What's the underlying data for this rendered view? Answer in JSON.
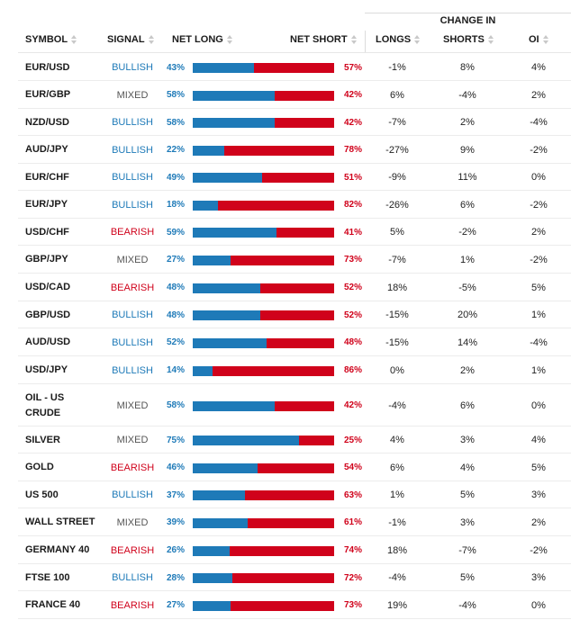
{
  "header": {
    "change_in": "CHANGE IN",
    "symbol": "SYMBOL",
    "signal": "SIGNAL",
    "net_long": "NET LONG",
    "net_short": "NET SHORT",
    "longs": "LONGS",
    "shorts": "SHORTS",
    "oi": "OI"
  },
  "colors": {
    "long": "#1e7ab8",
    "short": "#d0021b",
    "bullish": "#1e7ab8",
    "bearish": "#d0021b",
    "mixed": "#555555"
  },
  "rows": [
    {
      "symbol": "EUR/USD",
      "signal": "BULLISH",
      "net_long": "43%",
      "long_pct": 43,
      "net_short": "57%",
      "longs": "-1%",
      "shorts": "8%",
      "oi": "4%"
    },
    {
      "symbol": "EUR/GBP",
      "signal": "MIXED",
      "net_long": "58%",
      "long_pct": 58,
      "net_short": "42%",
      "longs": "6%",
      "shorts": "-4%",
      "oi": "2%"
    },
    {
      "symbol": "NZD/USD",
      "signal": "BULLISH",
      "net_long": "58%",
      "long_pct": 58,
      "net_short": "42%",
      "longs": "-7%",
      "shorts": "2%",
      "oi": "-4%"
    },
    {
      "symbol": "AUD/JPY",
      "signal": "BULLISH",
      "net_long": "22%",
      "long_pct": 22,
      "net_short": "78%",
      "longs": "-27%",
      "shorts": "9%",
      "oi": "-2%"
    },
    {
      "symbol": "EUR/CHF",
      "signal": "BULLISH",
      "net_long": "49%",
      "long_pct": 49,
      "net_short": "51%",
      "longs": "-9%",
      "shorts": "11%",
      "oi": "0%"
    },
    {
      "symbol": "EUR/JPY",
      "signal": "BULLISH",
      "net_long": "18%",
      "long_pct": 18,
      "net_short": "82%",
      "longs": "-26%",
      "shorts": "6%",
      "oi": "-2%"
    },
    {
      "symbol": "USD/CHF",
      "signal": "BEARISH",
      "net_long": "59%",
      "long_pct": 59,
      "net_short": "41%",
      "longs": "5%",
      "shorts": "-2%",
      "oi": "2%"
    },
    {
      "symbol": "GBP/JPY",
      "signal": "MIXED",
      "net_long": "27%",
      "long_pct": 27,
      "net_short": "73%",
      "longs": "-7%",
      "shorts": "1%",
      "oi": "-2%"
    },
    {
      "symbol": "USD/CAD",
      "signal": "BEARISH",
      "net_long": "48%",
      "long_pct": 48,
      "net_short": "52%",
      "longs": "18%",
      "shorts": "-5%",
      "oi": "5%"
    },
    {
      "symbol": "GBP/USD",
      "signal": "BULLISH",
      "net_long": "48%",
      "long_pct": 48,
      "net_short": "52%",
      "longs": "-15%",
      "shorts": "20%",
      "oi": "1%"
    },
    {
      "symbol": "AUD/USD",
      "signal": "BULLISH",
      "net_long": "52%",
      "long_pct": 52,
      "net_short": "48%",
      "longs": "-15%",
      "shorts": "14%",
      "oi": "-4%"
    },
    {
      "symbol": "USD/JPY",
      "signal": "BULLISH",
      "net_long": "14%",
      "long_pct": 14,
      "net_short": "86%",
      "longs": "0%",
      "shorts": "2%",
      "oi": "1%"
    },
    {
      "symbol": "OIL - US CRUDE",
      "signal": "MIXED",
      "net_long": "58%",
      "long_pct": 58,
      "net_short": "42%",
      "longs": "-4%",
      "shorts": "6%",
      "oi": "0%"
    },
    {
      "symbol": "SILVER",
      "signal": "MIXED",
      "net_long": "75%",
      "long_pct": 75,
      "net_short": "25%",
      "longs": "4%",
      "shorts": "3%",
      "oi": "4%"
    },
    {
      "symbol": "GOLD",
      "signal": "BEARISH",
      "net_long": "46%",
      "long_pct": 46,
      "net_short": "54%",
      "longs": "6%",
      "shorts": "4%",
      "oi": "5%"
    },
    {
      "symbol": "US 500",
      "signal": "BULLISH",
      "net_long": "37%",
      "long_pct": 37,
      "net_short": "63%",
      "longs": "1%",
      "shorts": "5%",
      "oi": "3%"
    },
    {
      "symbol": "WALL STREET",
      "signal": "MIXED",
      "net_long": "39%",
      "long_pct": 39,
      "net_short": "61%",
      "longs": "-1%",
      "shorts": "3%",
      "oi": "2%"
    },
    {
      "symbol": "GERMANY 40",
      "signal": "BEARISH",
      "net_long": "26%",
      "long_pct": 26,
      "net_short": "74%",
      "longs": "18%",
      "shorts": "-7%",
      "oi": "-2%"
    },
    {
      "symbol": "FTSE 100",
      "signal": "BULLISH",
      "net_long": "28%",
      "long_pct": 28,
      "net_short": "72%",
      "longs": "-4%",
      "shorts": "5%",
      "oi": "3%"
    },
    {
      "symbol": "FRANCE 40",
      "signal": "BEARISH",
      "net_long": "27%",
      "long_pct": 27,
      "net_short": "73%",
      "longs": "19%",
      "shorts": "-4%",
      "oi": "0%"
    }
  ]
}
